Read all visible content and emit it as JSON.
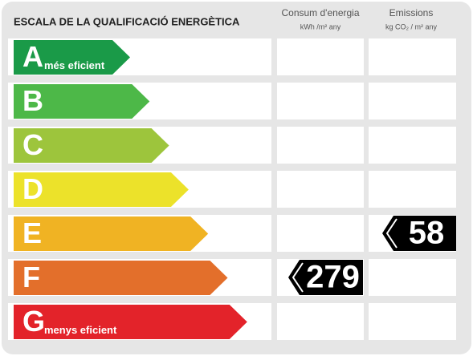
{
  "header": {
    "title": "ESCALA DE LA QUALIFICACIÓ ENERGÈTICA"
  },
  "columns": [
    {
      "title": "Consum d'energia",
      "unit": "kWh /m² any"
    },
    {
      "title": "Emissions",
      "unit": "kg CO₂ / m² any"
    }
  ],
  "rows": [
    {
      "letter": "A",
      "label": "més eficient",
      "color": "#1a9a48"
    },
    {
      "letter": "B",
      "color": "#4db848"
    },
    {
      "letter": "C",
      "color": "#9dc53c"
    },
    {
      "letter": "D",
      "color": "#ece22a"
    },
    {
      "letter": "E",
      "color": "#f0b323",
      "emissions": 58
    },
    {
      "letter": "F",
      "color": "#e36f2b",
      "consumption": 279
    },
    {
      "letter": "G",
      "label": "menys eficient",
      "color": "#e3232a"
    }
  ]
}
